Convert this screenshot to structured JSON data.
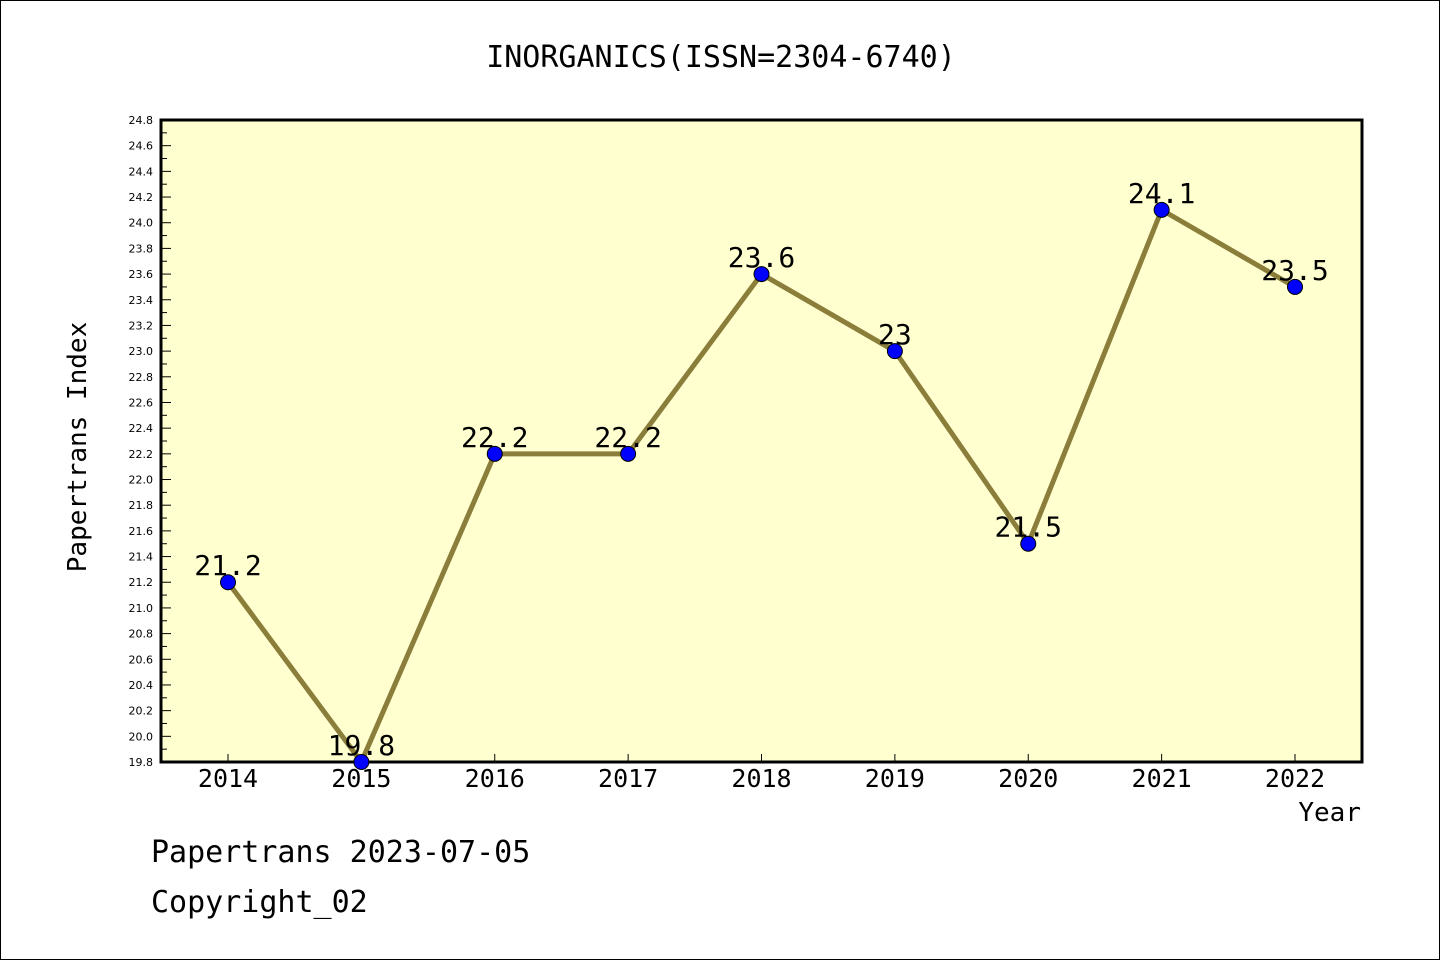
{
  "chart_data": {
    "type": "line",
    "title": "INORGANICS(ISSN=2304-6740)",
    "xlabel": "Year",
    "ylabel": "Papertrans Index",
    "categories": [
      "2014",
      "2015",
      "2016",
      "2017",
      "2018",
      "2019",
      "2020",
      "2021",
      "2022"
    ],
    "series": [
      {
        "values": [
          21.2,
          19.8,
          22.2,
          22.2,
          23.6,
          23.0,
          21.5,
          24.1,
          23.5
        ],
        "labels": [
          "21.2",
          "19.8",
          "22.2",
          "22.2",
          "23.6",
          "23",
          "21.5",
          "24.1",
          "23.5"
        ]
      }
    ],
    "ylim": [
      19.8,
      24.8
    ],
    "ytick_step": 0.2,
    "ytick_labels": [
      "19.8",
      "20.0",
      "20.2",
      "20.4",
      "20.6",
      "20.8",
      "21.0",
      "21.2",
      "21.4",
      "21.6",
      "21.8",
      "22.0",
      "22.2",
      "22.4",
      "22.6",
      "22.8",
      "23.0",
      "23.2",
      "23.4",
      "23.6",
      "23.8",
      "24.0",
      "24.2",
      "24.4",
      "24.6",
      "24.8"
    ],
    "grid": false,
    "colors": {
      "plot_background": "#ffffd0",
      "line": "#8b7d3a",
      "marker": "#0000ff",
      "axis": "#000000"
    }
  },
  "footer": {
    "line1": "Papertrans 2023-07-05",
    "line2": "Copyright_02"
  }
}
